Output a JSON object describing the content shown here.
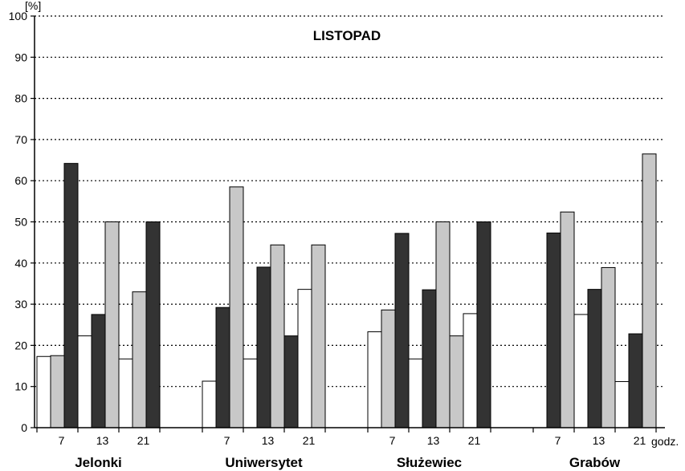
{
  "chart_data": {
    "type": "bar",
    "title": "LISTOPAD",
    "ylabel": "[%]",
    "x_unit_label": "godz.",
    "ylim": [
      0,
      100
    ],
    "yticks": [
      0,
      10,
      20,
      30,
      40,
      50,
      60,
      70,
      80,
      90,
      100
    ],
    "grid": "horizontal dotted",
    "groups": [
      {
        "name": "Jelonki",
        "hours": [
          {
            "label": "7",
            "bars": [
              17.5,
              17.3,
              64.2
            ]
          },
          {
            "label": "13",
            "bars": [
              22.3,
              27.5,
              50.0
            ]
          },
          {
            "label": "21",
            "bars": [
              16.7,
              33.0,
              50.0
            ]
          }
        ]
      },
      {
        "name": "Uniwersytet",
        "hours": [
          {
            "label": "7",
            "bars": [
              11.3,
              29.2,
              58.5
            ]
          },
          {
            "label": "13",
            "bars": [
              16.7,
              39.0,
              44.4
            ]
          },
          {
            "label": "21",
            "bars": [
              22.3,
              33.6,
              44.4
            ]
          }
        ]
      },
      {
        "name": "Służewiec",
        "hours": [
          {
            "label": "7",
            "bars": [
              23.3,
              28.6,
              47.2
            ]
          },
          {
            "label": "13",
            "bars": [
              16.7,
              33.5,
              50.0
            ]
          },
          {
            "label": "21",
            "bars": [
              22.3,
              27.7,
              50.0
            ]
          }
        ]
      },
      {
        "name": "Grabów",
        "hours": [
          {
            "label": "7",
            "bars": [
              0,
              47.3,
              52.4
            ]
          },
          {
            "label": "13",
            "bars": [
              27.5,
              33.6,
              38.9
            ]
          },
          {
            "label": "21",
            "bars": [
              11.2,
              22.8,
              66.5
            ]
          }
        ]
      }
    ],
    "bar_colors": {
      "white": "#ffffff",
      "light": "#c8c8c8",
      "dark": "#333333"
    },
    "bar_color_order": [
      [
        "white",
        "light",
        "dark"
      ],
      [
        "white",
        "dark",
        "light"
      ],
      [
        "white",
        "light",
        "dark"
      ],
      [
        "white",
        "dark",
        "light"
      ],
      [
        "white",
        "dark",
        "light"
      ],
      [
        "dark",
        "white",
        "light"
      ],
      [
        "white",
        "light",
        "dark"
      ],
      [
        "white",
        "dark",
        "light"
      ],
      [
        "light",
        "white",
        "dark"
      ],
      [
        "white",
        "dark",
        "light"
      ],
      [
        "white",
        "dark",
        "light"
      ],
      [
        "white",
        "dark",
        "light"
      ]
    ]
  }
}
